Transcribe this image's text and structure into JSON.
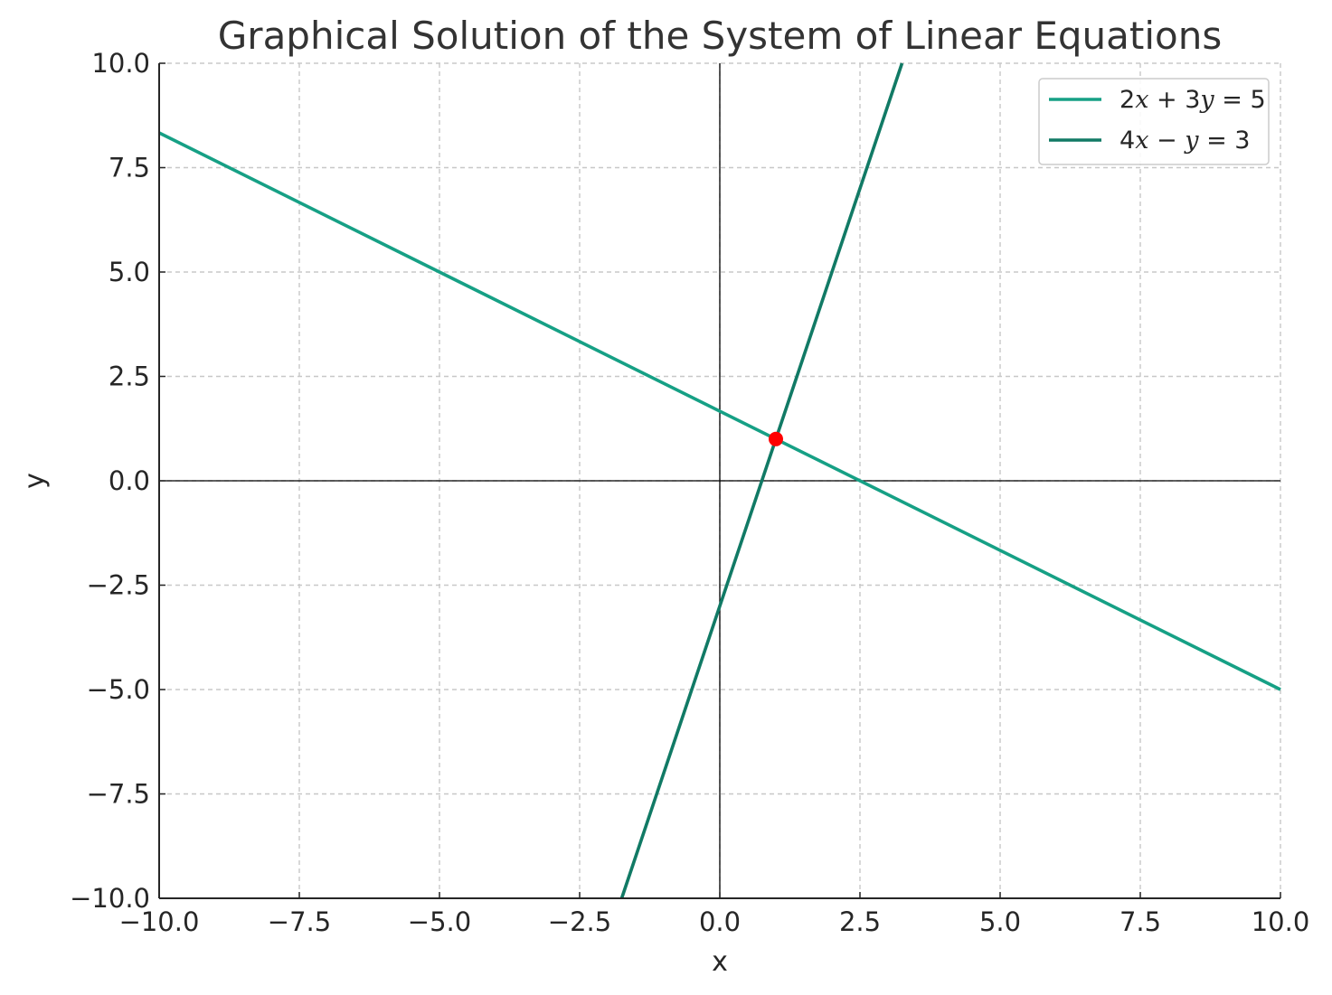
{
  "chart_data": {
    "type": "line",
    "title": "Graphical Solution of the System of Linear Equations",
    "xlabel": "x",
    "ylabel": "y",
    "xlim": [
      -10,
      10
    ],
    "ylim": [
      -10,
      10
    ],
    "x_ticks": [
      -10,
      -7.5,
      -5,
      -2.5,
      0,
      2.5,
      5,
      7.5,
      10
    ],
    "y_ticks": [
      -10,
      -7.5,
      -5,
      -2.5,
      0,
      2.5,
      5,
      7.5,
      10
    ],
    "x_tick_labels": [
      "−10.0",
      "−7.5",
      "−5.0",
      "−2.5",
      "0.0",
      "2.5",
      "5.0",
      "7.5",
      "10.0"
    ],
    "y_tick_labels": [
      "−10.0",
      "−7.5",
      "−5.0",
      "−2.5",
      "0.0",
      "2.5",
      "5.0",
      "7.5",
      "10.0"
    ],
    "grid": true,
    "legend_position": "top-right",
    "series": [
      {
        "name": "2x + 3y = 5",
        "legend_parts": [
          "2",
          "x",
          " + 3",
          "y",
          " = 5"
        ],
        "color": "#16a085",
        "x": [
          -10,
          10
        ],
        "y": [
          8.333,
          -5
        ]
      },
      {
        "name": "4x − y = 3",
        "legend_parts": [
          "4",
          "x",
          " − ",
          "y",
          " = 3"
        ],
        "color": "#117a65",
        "x": [
          -1.75,
          3.25
        ],
        "y": [
          -10,
          10
        ]
      }
    ],
    "points": [
      {
        "x": 1,
        "y": 1,
        "color": "#ff0000"
      }
    ]
  }
}
